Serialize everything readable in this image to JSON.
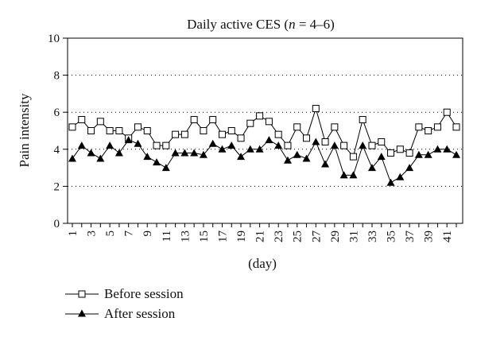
{
  "chart_data": {
    "type": "line",
    "title_parts": [
      "Daily active CES (",
      "n",
      " = 4–6)"
    ],
    "xlabel": "(day)",
    "ylabel": "Pain intensity",
    "xlim": [
      1,
      42
    ],
    "ylim": [
      0,
      10
    ],
    "yticks": [
      0,
      2,
      4,
      6,
      8,
      10
    ],
    "xticks": [
      1,
      3,
      5,
      7,
      9,
      11,
      13,
      15,
      17,
      19,
      21,
      23,
      25,
      27,
      29,
      31,
      33,
      35,
      37,
      39,
      41
    ],
    "grid": "horizontal-dotted",
    "legend_position": "bottom-left",
    "series": [
      {
        "name": "Before session",
        "marker": "open-square",
        "color": "#000000",
        "x": [
          1,
          2,
          3,
          4,
          5,
          6,
          7,
          8,
          9,
          10,
          11,
          12,
          13,
          14,
          15,
          16,
          17,
          18,
          19,
          20,
          21,
          22,
          23,
          24,
          25,
          26,
          27,
          28,
          29,
          30,
          31,
          32,
          33,
          34,
          35,
          36,
          37,
          38,
          39,
          40,
          41,
          42
        ],
        "values": [
          5.2,
          5.6,
          5.0,
          5.5,
          5.0,
          5.0,
          4.6,
          5.2,
          5.0,
          4.2,
          4.2,
          4.8,
          4.8,
          5.6,
          5.0,
          5.6,
          4.8,
          5.0,
          4.6,
          5.4,
          5.8,
          5.5,
          4.8,
          4.2,
          5.2,
          4.6,
          6.2,
          4.4,
          5.2,
          4.2,
          3.6,
          5.6,
          4.2,
          4.4,
          3.8,
          4.0,
          3.8,
          5.2,
          5.0,
          5.2,
          6.0,
          5.2
        ]
      },
      {
        "name": "After session",
        "marker": "filled-triangle",
        "color": "#000000",
        "x": [
          1,
          2,
          3,
          4,
          5,
          6,
          7,
          8,
          9,
          10,
          11,
          12,
          13,
          14,
          15,
          16,
          17,
          18,
          19,
          20,
          21,
          22,
          23,
          24,
          25,
          26,
          27,
          28,
          29,
          30,
          31,
          32,
          33,
          34,
          35,
          36,
          37,
          38,
          39,
          40,
          41,
          42
        ],
        "values": [
          3.5,
          4.2,
          3.8,
          3.5,
          4.2,
          3.8,
          4.5,
          4.3,
          3.6,
          3.3,
          3.0,
          3.8,
          3.8,
          3.8,
          3.7,
          4.3,
          4.0,
          4.2,
          3.6,
          4.0,
          4.0,
          4.5,
          4.2,
          3.4,
          3.7,
          3.5,
          4.4,
          3.2,
          4.2,
          2.6,
          2.6,
          4.2,
          3.0,
          3.6,
          2.2,
          2.5,
          3.0,
          3.7,
          3.7,
          4.0,
          4.0,
          3.7
        ]
      }
    ]
  }
}
